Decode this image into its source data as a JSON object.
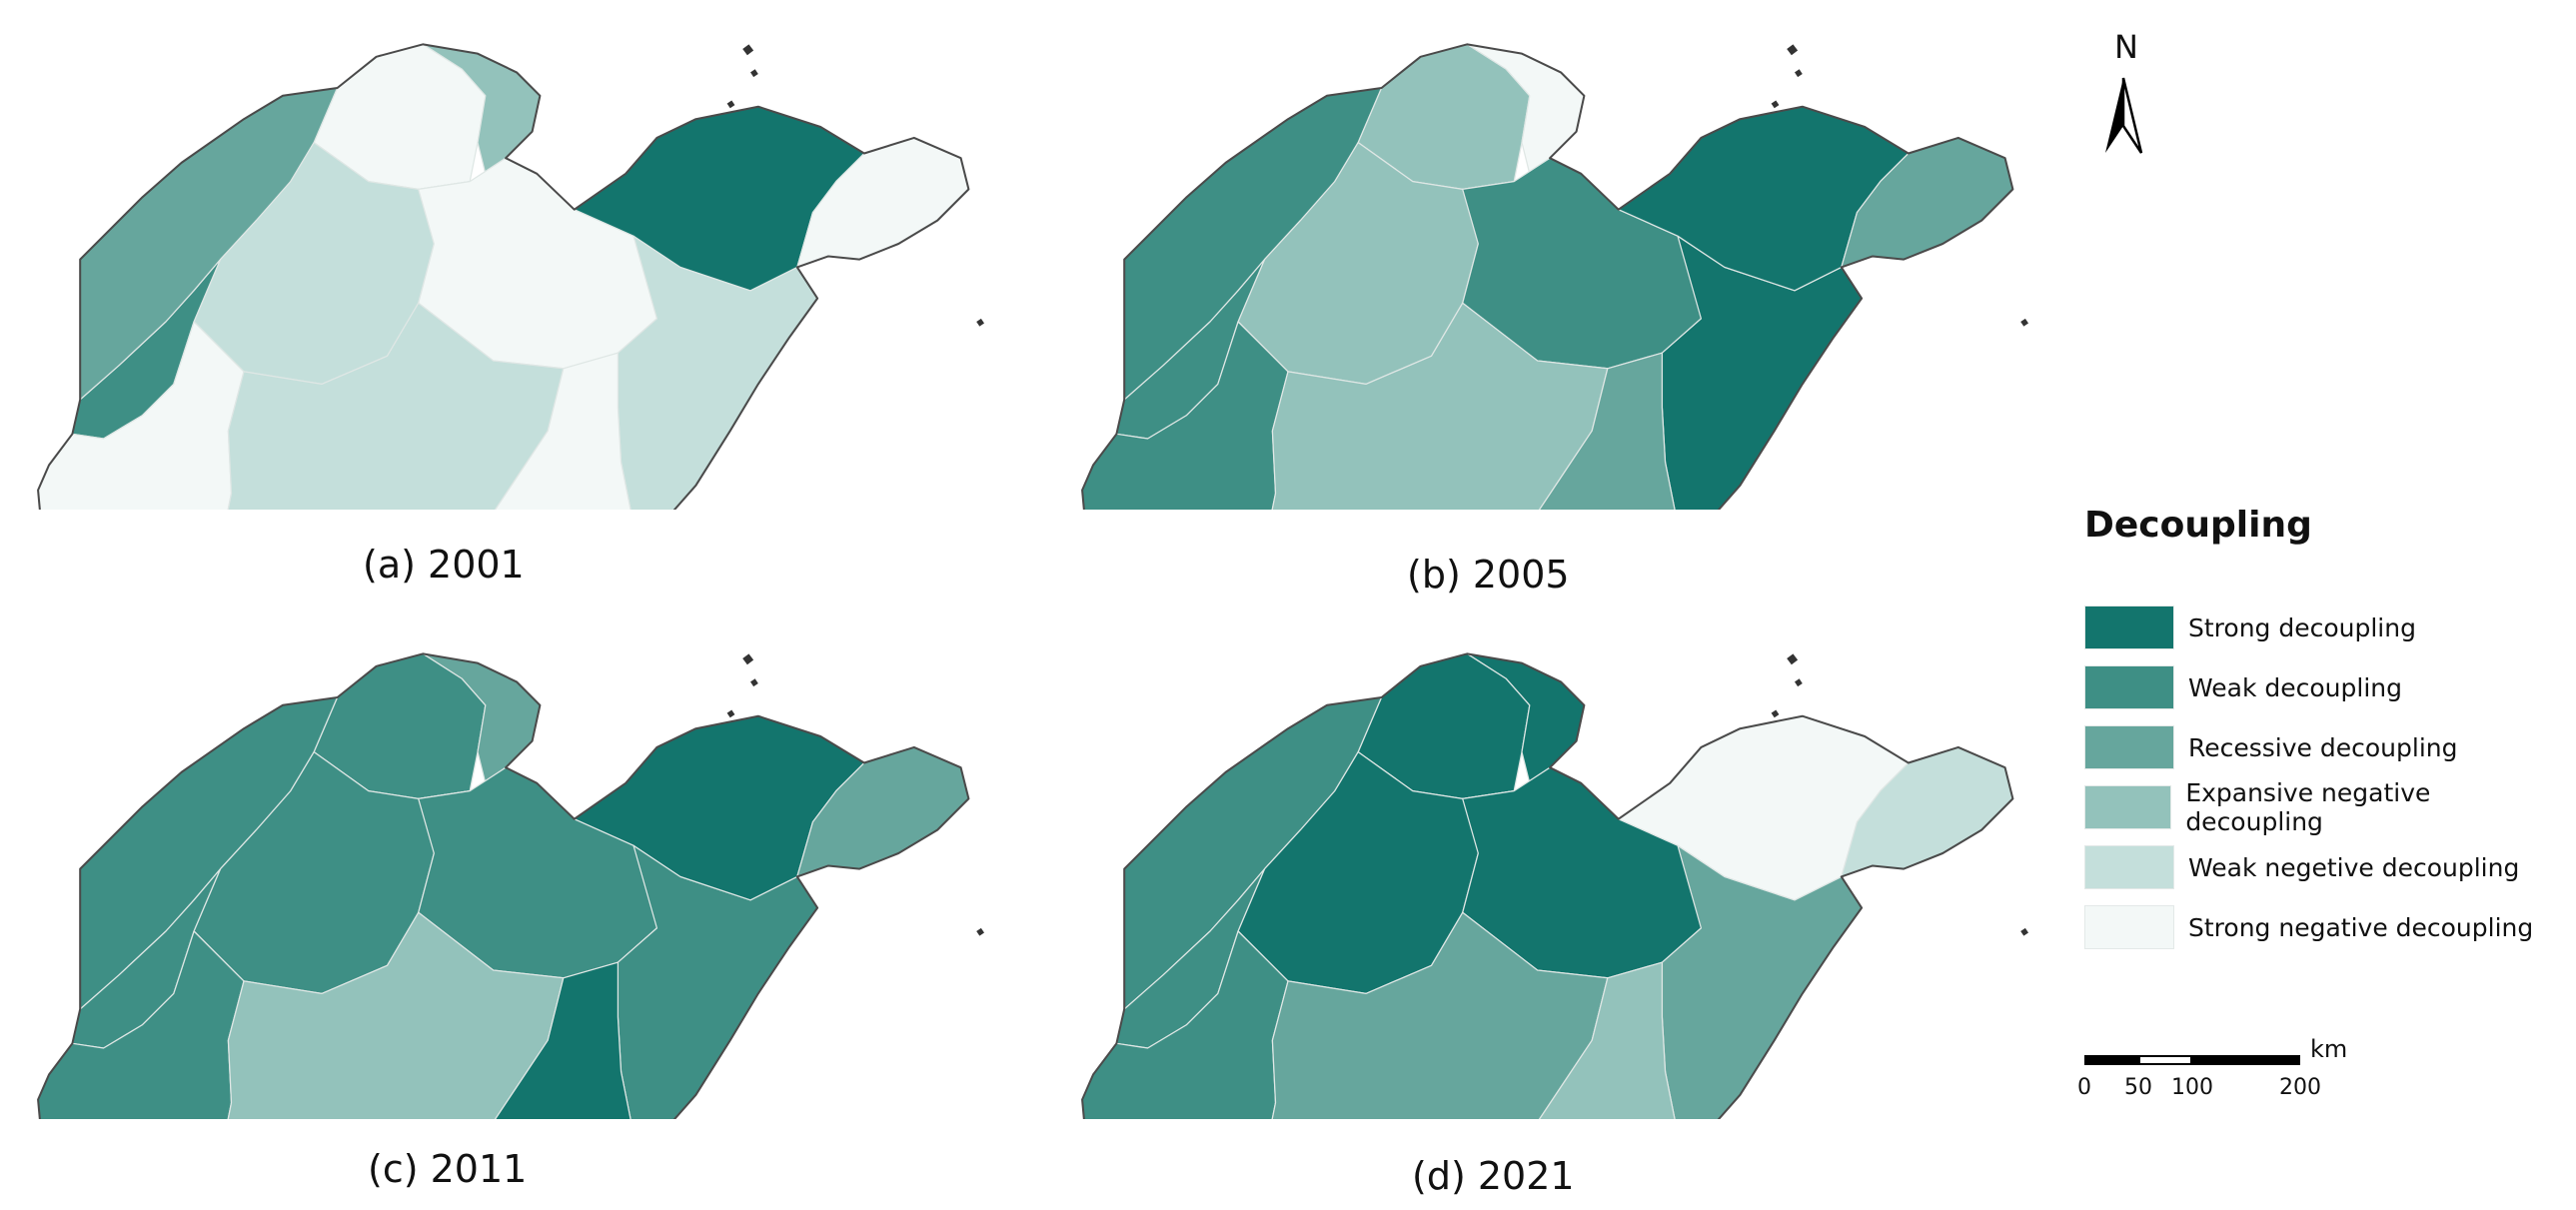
{
  "legend": {
    "title": "Decoupling",
    "items": [
      {
        "label": "Strong decoupling",
        "color": "#13756d"
      },
      {
        "label": "Weak decoupling",
        "color": "#3e8f85"
      },
      {
        "label": "Recessive decoupling",
        "color": "#66a69d"
      },
      {
        "label": "Expansive negative decoupling",
        "color": "#93c2bb"
      },
      {
        "label": "Weak negetive decoupling",
        "color": "#c4dfdb"
      },
      {
        "label": "Strong negative decoupling",
        "color": "#f3f8f7"
      }
    ]
  },
  "north_arrow": {
    "label": "N"
  },
  "scale_bar": {
    "unit": "km",
    "ticks": [
      "0",
      "50",
      "100",
      "200"
    ]
  },
  "panels": [
    {
      "caption": "(a) 2001",
      "year": "2001",
      "regions": {
        "northwest": "Recessive decoupling",
        "north_central": "Strong negative decoupling",
        "north_coast": "Expansive negative decoupling",
        "west": "Weak decoupling",
        "center": "Weak negetive decoupling",
        "center_east": "Strong negative decoupling",
        "east_coast": "Weak negetive decoupling",
        "peninsula_west": "Strong decoupling",
        "peninsula_tip": "Strong negative decoupling",
        "southwest": "Strong negative decoupling",
        "south_central": "Weak negetive decoupling",
        "southeast": "Strong negative decoupling"
      }
    },
    {
      "caption": "(b) 2005",
      "year": "2005",
      "regions": {
        "northwest": "Weak decoupling",
        "north_central": "Expansive negative decoupling",
        "north_coast": "Strong negative decoupling",
        "west": "Weak decoupling",
        "center": "Expansive negative decoupling",
        "center_east": "Weak decoupling",
        "east_coast": "Strong decoupling",
        "peninsula_west": "Strong decoupling",
        "peninsula_tip": "Recessive decoupling",
        "southwest": "Weak decoupling",
        "south_central": "Expansive negative decoupling",
        "southeast": "Recessive decoupling"
      }
    },
    {
      "caption": "(c) 2011",
      "year": "2011",
      "regions": {
        "northwest": "Weak decoupling",
        "north_central": "Weak decoupling",
        "north_coast": "Recessive decoupling",
        "west": "Weak decoupling",
        "center": "Weak decoupling",
        "center_east": "Weak decoupling",
        "east_coast": "Weak decoupling",
        "peninsula_west": "Strong decoupling",
        "peninsula_tip": "Recessive decoupling",
        "southwest": "Weak decoupling",
        "south_central": "Expansive negative decoupling",
        "southeast": "Strong decoupling"
      }
    },
    {
      "caption": "(d) 2021",
      "year": "2021",
      "regions": {
        "northwest": "Weak decoupling",
        "north_central": "Strong decoupling",
        "north_coast": "Strong decoupling",
        "west": "Weak decoupling",
        "center": "Strong decoupling",
        "center_east": "Strong decoupling",
        "east_coast": "Recessive decoupling",
        "peninsula_west": "Strong negative decoupling",
        "peninsula_tip": "Weak negetive decoupling",
        "southwest": "Weak decoupling",
        "south_central": "Recessive decoupling",
        "southeast": "Expansive negative decoupling"
      }
    }
  ]
}
